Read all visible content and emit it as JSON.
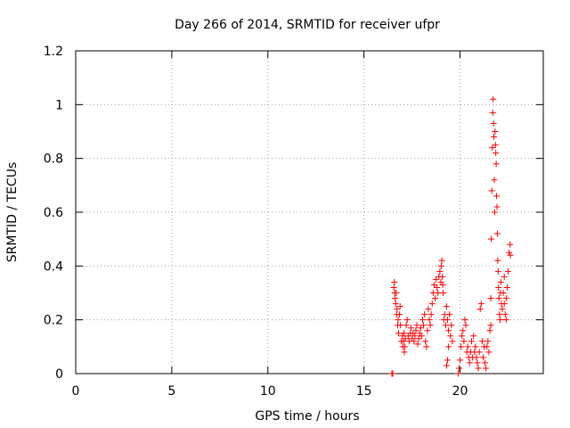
{
  "chart_data": {
    "type": "scatter",
    "title": "Day 266 of 2014, SRMTID for receiver ufpr",
    "xlabel": "GPS time / hours",
    "ylabel": "SRMTID / TECUs",
    "xlim": [
      0,
      24.33
    ],
    "ylim": [
      0,
      1.2
    ],
    "xticks": [
      0,
      5,
      10,
      15,
      20
    ],
    "xtick_labels": [
      "0",
      "5",
      "10",
      "15",
      "20"
    ],
    "yticks": [
      0,
      0.2,
      0.4,
      0.6,
      0.8,
      1.0,
      1.2
    ],
    "ytick_labels": [
      "0",
      "0.2",
      "0.4",
      "0.6",
      "0.8",
      "1",
      "1.2"
    ],
    "grid": true,
    "marker": "+",
    "color": "#ff0000",
    "series": [
      {
        "name": "SRMTID",
        "points": [
          [
            16.45,
            0.0
          ],
          [
            16.5,
            0.0
          ],
          [
            16.55,
            0.32
          ],
          [
            16.58,
            0.34
          ],
          [
            16.6,
            0.3
          ],
          [
            16.62,
            0.28
          ],
          [
            16.65,
            0.26
          ],
          [
            16.68,
            0.3
          ],
          [
            16.7,
            0.22
          ],
          [
            16.72,
            0.24
          ],
          [
            16.75,
            0.18
          ],
          [
            16.78,
            0.2
          ],
          [
            16.8,
            0.15
          ],
          [
            16.85,
            0.22
          ],
          [
            16.88,
            0.25
          ],
          [
            16.9,
            0.18
          ],
          [
            16.95,
            0.12
          ],
          [
            17.0,
            0.14
          ],
          [
            17.02,
            0.1
          ],
          [
            17.05,
            0.12
          ],
          [
            17.08,
            0.15
          ],
          [
            17.1,
            0.08
          ],
          [
            17.12,
            0.1
          ],
          [
            17.15,
            0.13
          ],
          [
            17.2,
            0.18
          ],
          [
            17.25,
            0.2
          ],
          [
            17.3,
            0.14
          ],
          [
            17.35,
            0.12
          ],
          [
            17.4,
            0.15
          ],
          [
            17.45,
            0.17
          ],
          [
            17.5,
            0.13
          ],
          [
            17.55,
            0.15
          ],
          [
            17.6,
            0.12
          ],
          [
            17.65,
            0.14
          ],
          [
            17.7,
            0.16
          ],
          [
            17.75,
            0.18
          ],
          [
            17.8,
            0.11
          ],
          [
            17.85,
            0.13
          ],
          [
            17.9,
            0.15
          ],
          [
            17.95,
            0.17
          ],
          [
            18.0,
            0.14
          ],
          [
            18.05,
            0.2
          ],
          [
            18.1,
            0.18
          ],
          [
            18.15,
            0.22
          ],
          [
            18.2,
            0.12
          ],
          [
            18.25,
            0.1
          ],
          [
            18.3,
            0.16
          ],
          [
            18.35,
            0.24
          ],
          [
            18.4,
            0.2
          ],
          [
            18.45,
            0.18
          ],
          [
            18.5,
            0.22
          ],
          [
            18.55,
            0.26
          ],
          [
            18.6,
            0.3
          ],
          [
            18.65,
            0.33
          ],
          [
            18.7,
            0.28
          ],
          [
            18.75,
            0.35
          ],
          [
            18.8,
            0.32
          ],
          [
            18.85,
            0.3
          ],
          [
            18.9,
            0.36
          ],
          [
            18.95,
            0.38
          ],
          [
            19.0,
            0.34
          ],
          [
            19.02,
            0.4
          ],
          [
            19.05,
            0.42
          ],
          [
            19.08,
            0.36
          ],
          [
            19.1,
            0.33
          ],
          [
            19.12,
            0.3
          ],
          [
            19.15,
            0.2
          ],
          [
            19.2,
            0.22
          ],
          [
            19.25,
            0.18
          ],
          [
            19.3,
            0.25
          ],
          [
            19.35,
            0.2
          ],
          [
            19.4,
            0.16
          ],
          [
            19.45,
            0.22
          ],
          [
            19.5,
            0.14
          ],
          [
            19.55,
            0.18
          ],
          [
            19.6,
            0.12
          ],
          [
            19.3,
            0.03
          ],
          [
            19.35,
            0.05
          ],
          [
            19.4,
            0.1
          ],
          [
            19.9,
            0.0
          ],
          [
            19.95,
            0.02
          ],
          [
            20.0,
            0.05
          ],
          [
            20.05,
            0.1
          ],
          [
            20.1,
            0.14
          ],
          [
            20.15,
            0.16
          ],
          [
            20.2,
            0.12
          ],
          [
            20.25,
            0.2
          ],
          [
            20.3,
            0.18
          ],
          [
            20.35,
            0.08
          ],
          [
            20.4,
            0.1
          ],
          [
            20.45,
            0.06
          ],
          [
            20.5,
            0.04
          ],
          [
            20.55,
            0.08
          ],
          [
            20.6,
            0.12
          ],
          [
            20.65,
            0.06
          ],
          [
            20.7,
            0.14
          ],
          [
            20.75,
            0.08
          ],
          [
            20.8,
            0.1
          ],
          [
            20.85,
            0.06
          ],
          [
            20.9,
            0.04
          ],
          [
            20.95,
            0.02
          ],
          [
            21.0,
            0.08
          ],
          [
            21.05,
            0.24
          ],
          [
            21.1,
            0.26
          ],
          [
            21.15,
            0.12
          ],
          [
            21.2,
            0.06
          ],
          [
            21.25,
            0.1
          ],
          [
            21.3,
            0.04
          ],
          [
            21.35,
            0.02
          ],
          [
            21.4,
            0.1
          ],
          [
            21.45,
            0.12
          ],
          [
            21.5,
            0.08
          ],
          [
            21.55,
            0.16
          ],
          [
            21.6,
            0.18
          ],
          [
            21.6,
            0.28
          ],
          [
            21.62,
            0.5
          ],
          [
            21.65,
            0.68
          ],
          [
            21.68,
            0.84
          ],
          [
            21.7,
            0.97
          ],
          [
            21.72,
            1.02
          ],
          [
            21.74,
            0.93
          ],
          [
            21.76,
            0.88
          ],
          [
            21.78,
            0.72
          ],
          [
            21.8,
            0.6
          ],
          [
            21.82,
            0.9
          ],
          [
            21.84,
            0.85
          ],
          [
            21.86,
            0.82
          ],
          [
            21.88,
            0.78
          ],
          [
            21.9,
            0.66
          ],
          [
            21.92,
            0.62
          ],
          [
            21.94,
            0.52
          ],
          [
            21.96,
            0.42
          ],
          [
            21.98,
            0.38
          ],
          [
            22.0,
            0.32
          ],
          [
            22.02,
            0.28
          ],
          [
            22.05,
            0.22
          ],
          [
            22.08,
            0.2
          ],
          [
            22.1,
            0.3
          ],
          [
            22.12,
            0.34
          ],
          [
            22.15,
            0.26
          ],
          [
            22.2,
            0.24
          ],
          [
            22.25,
            0.3
          ],
          [
            22.3,
            0.36
          ],
          [
            22.35,
            0.22
          ],
          [
            22.4,
            0.28
          ],
          [
            22.45,
            0.32
          ],
          [
            22.5,
            0.38
          ],
          [
            22.55,
            0.45
          ],
          [
            22.6,
            0.48
          ],
          [
            22.62,
            0.44
          ],
          [
            22.4,
            0.2
          ],
          [
            22.3,
            0.26
          ]
        ]
      }
    ]
  }
}
